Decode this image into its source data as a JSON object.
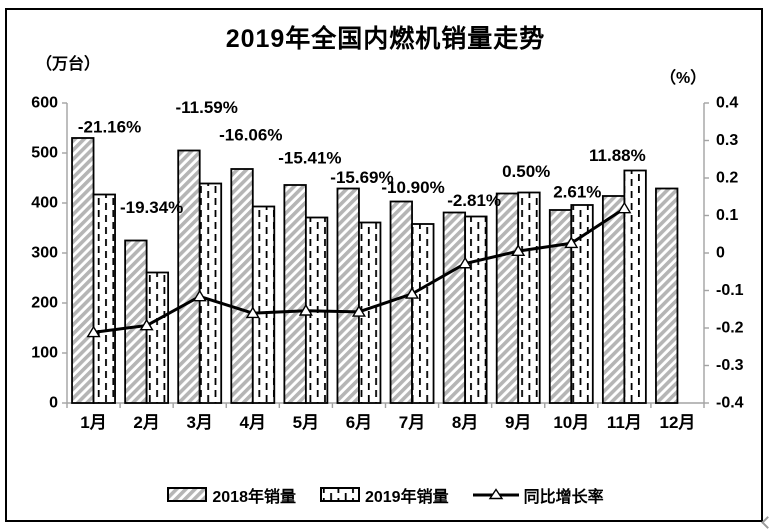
{
  "header": {
    "title": "2019年全国内燃机销量走势"
  },
  "legend": {
    "items": [
      {
        "label": "2018年销量",
        "swatch": "diagonal-hatch"
      },
      {
        "label": "2019年销量",
        "swatch": "vertical-dash"
      },
      {
        "label": "同比增长率",
        "swatch": "line-triangle"
      }
    ]
  },
  "chart_data": {
    "type": "combo",
    "title": "2019年全国内燃机销量走势",
    "categories": [
      "1月",
      "2月",
      "3月",
      "4月",
      "5月",
      "6月",
      "7月",
      "8月",
      "9月",
      "10月",
      "11月",
      "12月"
    ],
    "series": [
      {
        "name": "2018年销量",
        "type": "bar",
        "pattern": "diagonal-hatch",
        "unit": "万台",
        "values": [
          530,
          325,
          505,
          468,
          436,
          429,
          403,
          381,
          419,
          386,
          414,
          429
        ]
      },
      {
        "name": "2019年销量",
        "type": "bar",
        "pattern": "vertical-dash",
        "unit": "万台",
        "values": [
          417,
          261,
          439,
          393,
          371,
          361,
          358,
          373,
          421,
          396,
          465,
          null
        ]
      },
      {
        "name": "同比增长率",
        "type": "line",
        "axis": "right",
        "marker": "triangle-up",
        "values": [
          -0.2116,
          -0.1934,
          -0.1159,
          -0.1606,
          -0.1541,
          -0.1569,
          -0.109,
          -0.0281,
          0.005,
          0.0261,
          0.1188,
          null
        ],
        "point_labels": [
          "-21.16%",
          "-19.34%",
          "-11.59%",
          "-16.06%",
          "-15.41%",
          "-15.69%",
          "-10.90%",
          "-2.81%",
          "0.50%",
          "2.61%",
          "11.88%",
          ""
        ]
      }
    ],
    "left_axis": {
      "label": "（万台）",
      "min": 0,
      "max": 600,
      "step": 100,
      "ticks": [
        "600",
        "500",
        "400",
        "300",
        "200",
        "100",
        "0"
      ]
    },
    "right_axis": {
      "label": "（%）",
      "min": -0.4,
      "max": 0.4,
      "step": 0.1,
      "ticks": [
        "0.4",
        "0.3",
        "0.2",
        "0.1",
        "0",
        "-0.1",
        "-0.2",
        "-0.3",
        "-0.4"
      ]
    },
    "grid": false,
    "legend_position": "bottom",
    "label_offsets": {
      "dx": [
        16,
        5,
        7,
        -2,
        4,
        3,
        1,
        9,
        8,
        6,
        -7,
        0
      ],
      "dy": [
        11,
        33,
        43,
        34,
        27,
        11,
        14,
        12,
        21,
        13,
        15,
        0
      ]
    }
  },
  "colors": {
    "bar_border": "#000000",
    "hatch_gray": "#b5b5b5",
    "axis_gray": "#a3a3a3",
    "line_black": "#000000",
    "marker_fill": "#ffffff"
  }
}
